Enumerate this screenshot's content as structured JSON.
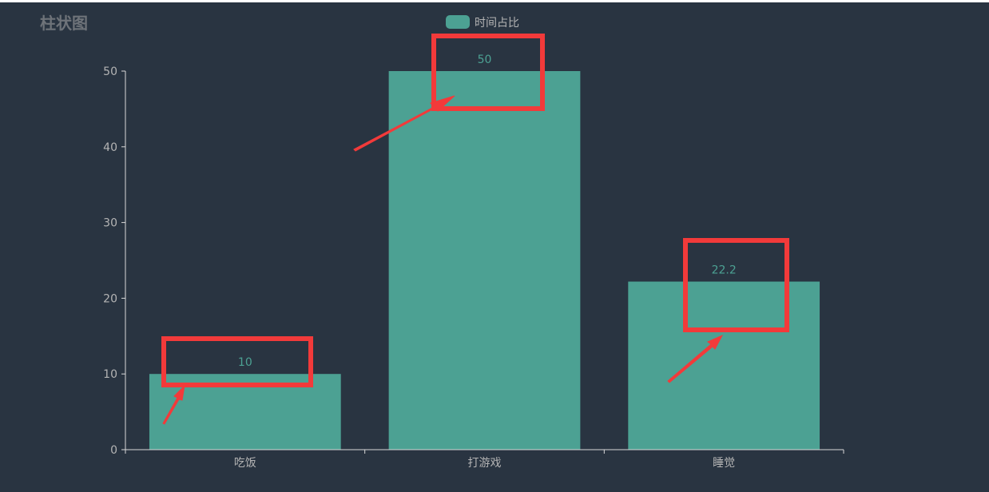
{
  "chart_data": {
    "type": "bar",
    "title": "柱状图",
    "categories": [
      "吃饭",
      "打游戏",
      "睡觉"
    ],
    "series": [
      {
        "name": "时间占比",
        "values": [
          10,
          50,
          22.2
        ]
      }
    ],
    "data_labels": [
      "10",
      "50",
      "22.2"
    ],
    "ylim": [
      0,
      50
    ],
    "yticks": [
      0,
      10,
      20,
      30,
      40,
      50
    ],
    "grid": false,
    "legend": "top-center",
    "colors": {
      "background": "#293441",
      "bar": "#4ca193",
      "axis": "#d9d9d9",
      "tick_text": "#b4b4b4",
      "title_text": "#6e7379",
      "label_text": "#4ca193",
      "annotation": "#f23a3a"
    }
  }
}
